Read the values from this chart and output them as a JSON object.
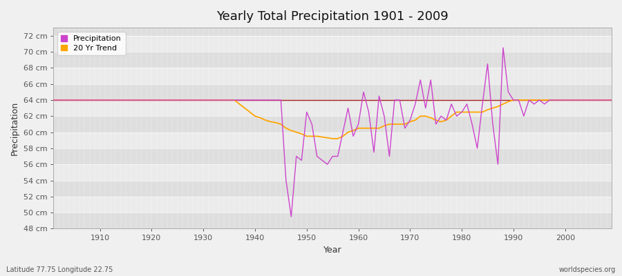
{
  "title": "Yearly Total Precipitation 1901 - 2009",
  "xlabel": "Year",
  "ylabel": "Precipitation",
  "subtitle_left": "Latitude 77.75 Longitude 22.75",
  "subtitle_right": "worldspecies.org",
  "ylim": [
    48,
    73
  ],
  "yticks": [
    48,
    50,
    52,
    54,
    56,
    58,
    60,
    62,
    64,
    66,
    68,
    70,
    72
  ],
  "ytick_labels": [
    "48 cm",
    "50 cm",
    "52 cm",
    "54 cm",
    "56 cm",
    "58 cm",
    "60 cm",
    "62 cm",
    "64 cm",
    "66 cm",
    "68 cm",
    "70 cm",
    "72 cm"
  ],
  "xlim": [
    1901,
    2009
  ],
  "xticks": [
    1910,
    1920,
    1930,
    1940,
    1950,
    1960,
    1970,
    1980,
    1990,
    2000
  ],
  "precip_color": "#CC44CC",
  "trend_color": "#FFA500",
  "mean_color": "#AA2222",
  "bg_color": "#F0F0F0",
  "plot_bg_light": "#EBEBEB",
  "plot_bg_dark": "#DEDEDE",
  "legend_labels": [
    "Precipitation",
    "20 Yr Trend"
  ],
  "years": [
    1901,
    1902,
    1903,
    1904,
    1905,
    1906,
    1907,
    1908,
    1909,
    1910,
    1911,
    1912,
    1913,
    1914,
    1915,
    1916,
    1917,
    1918,
    1919,
    1920,
    1921,
    1922,
    1923,
    1924,
    1925,
    1926,
    1927,
    1928,
    1929,
    1930,
    1931,
    1932,
    1933,
    1934,
    1935,
    1936,
    1937,
    1938,
    1939,
    1940,
    1941,
    1942,
    1943,
    1944,
    1945,
    1946,
    1947,
    1948,
    1949,
    1950,
    1951,
    1952,
    1953,
    1954,
    1955,
    1956,
    1957,
    1958,
    1959,
    1960,
    1961,
    1962,
    1963,
    1964,
    1965,
    1966,
    1967,
    1968,
    1969,
    1970,
    1971,
    1972,
    1973,
    1974,
    1975,
    1976,
    1977,
    1978,
    1979,
    1980,
    1981,
    1982,
    1983,
    1984,
    1985,
    1986,
    1987,
    1988,
    1989,
    1990,
    1991,
    1992,
    1993,
    1994,
    1995,
    1996,
    1997,
    1998,
    1999,
    2000,
    2001,
    2002,
    2003,
    2004,
    2005,
    2006,
    2007,
    2008,
    2009
  ],
  "precip": [
    64.0,
    64.0,
    64.0,
    64.0,
    64.0,
    64.0,
    64.0,
    64.0,
    64.0,
    64.0,
    64.0,
    64.0,
    64.0,
    64.0,
    64.0,
    64.0,
    64.0,
    64.0,
    64.0,
    64.0,
    64.0,
    64.0,
    64.0,
    64.0,
    64.0,
    64.0,
    64.0,
    64.0,
    64.0,
    64.0,
    64.0,
    64.0,
    64.0,
    64.0,
    64.0,
    64.0,
    64.0,
    64.0,
    64.0,
    64.0,
    64.0,
    64.0,
    64.0,
    64.0,
    64.0,
    54.0,
    49.5,
    57.0,
    56.5,
    62.5,
    61.0,
    57.0,
    56.5,
    56.0,
    57.0,
    57.0,
    60.0,
    63.0,
    59.5,
    61.0,
    65.0,
    62.5,
    57.5,
    64.5,
    62.0,
    57.0,
    64.0,
    64.0,
    60.5,
    61.5,
    63.5,
    66.5,
    63.0,
    66.5,
    61.0,
    62.0,
    61.5,
    63.5,
    62.0,
    62.5,
    63.5,
    61.0,
    58.0,
    63.5,
    68.5,
    61.0,
    56.0,
    70.5,
    65.0,
    64.0,
    64.0,
    62.0,
    64.0,
    63.5,
    64.0,
    63.5,
    64.0,
    64.0,
    64.0,
    64.0,
    64.0,
    64.0,
    64.0,
    64.0,
    64.0,
    64.0,
    64.0,
    64.0,
    64.0
  ],
  "trend": [
    64.0,
    64.0,
    64.0,
    64.0,
    64.0,
    64.0,
    64.0,
    64.0,
    64.0,
    64.0,
    64.0,
    64.0,
    64.0,
    64.0,
    64.0,
    64.0,
    64.0,
    64.0,
    64.0,
    64.0,
    64.0,
    64.0,
    64.0,
    64.0,
    64.0,
    64.0,
    64.0,
    64.0,
    64.0,
    64.0,
    64.0,
    64.0,
    64.0,
    64.0,
    64.0,
    64.0,
    63.5,
    63.0,
    62.5,
    62.0,
    61.8,
    61.5,
    61.3,
    61.2,
    61.0,
    60.5,
    60.2,
    60.0,
    59.8,
    59.5,
    59.5,
    59.5,
    59.4,
    59.3,
    59.2,
    59.2,
    59.5,
    60.0,
    60.2,
    60.5,
    60.5,
    60.5,
    60.5,
    60.5,
    60.8,
    61.0,
    61.0,
    61.0,
    61.0,
    61.3,
    61.5,
    62.0,
    62.0,
    61.8,
    61.5,
    61.3,
    61.5,
    62.0,
    62.5,
    62.5,
    62.5,
    62.5,
    62.5,
    62.5,
    62.8,
    63.0,
    63.2,
    63.5,
    63.8,
    64.0,
    64.0,
    64.0,
    64.0,
    64.0,
    64.0,
    64.0,
    64.0,
    64.0,
    64.0,
    64.0,
    64.0,
    64.0,
    64.0,
    64.0,
    64.0,
    64.0,
    64.0,
    64.0,
    64.0
  ],
  "mean_val": 64.0,
  "band_edges": [
    48,
    50,
    52,
    54,
    56,
    58,
    60,
    62,
    64,
    66,
    68,
    70,
    72,
    73
  ]
}
